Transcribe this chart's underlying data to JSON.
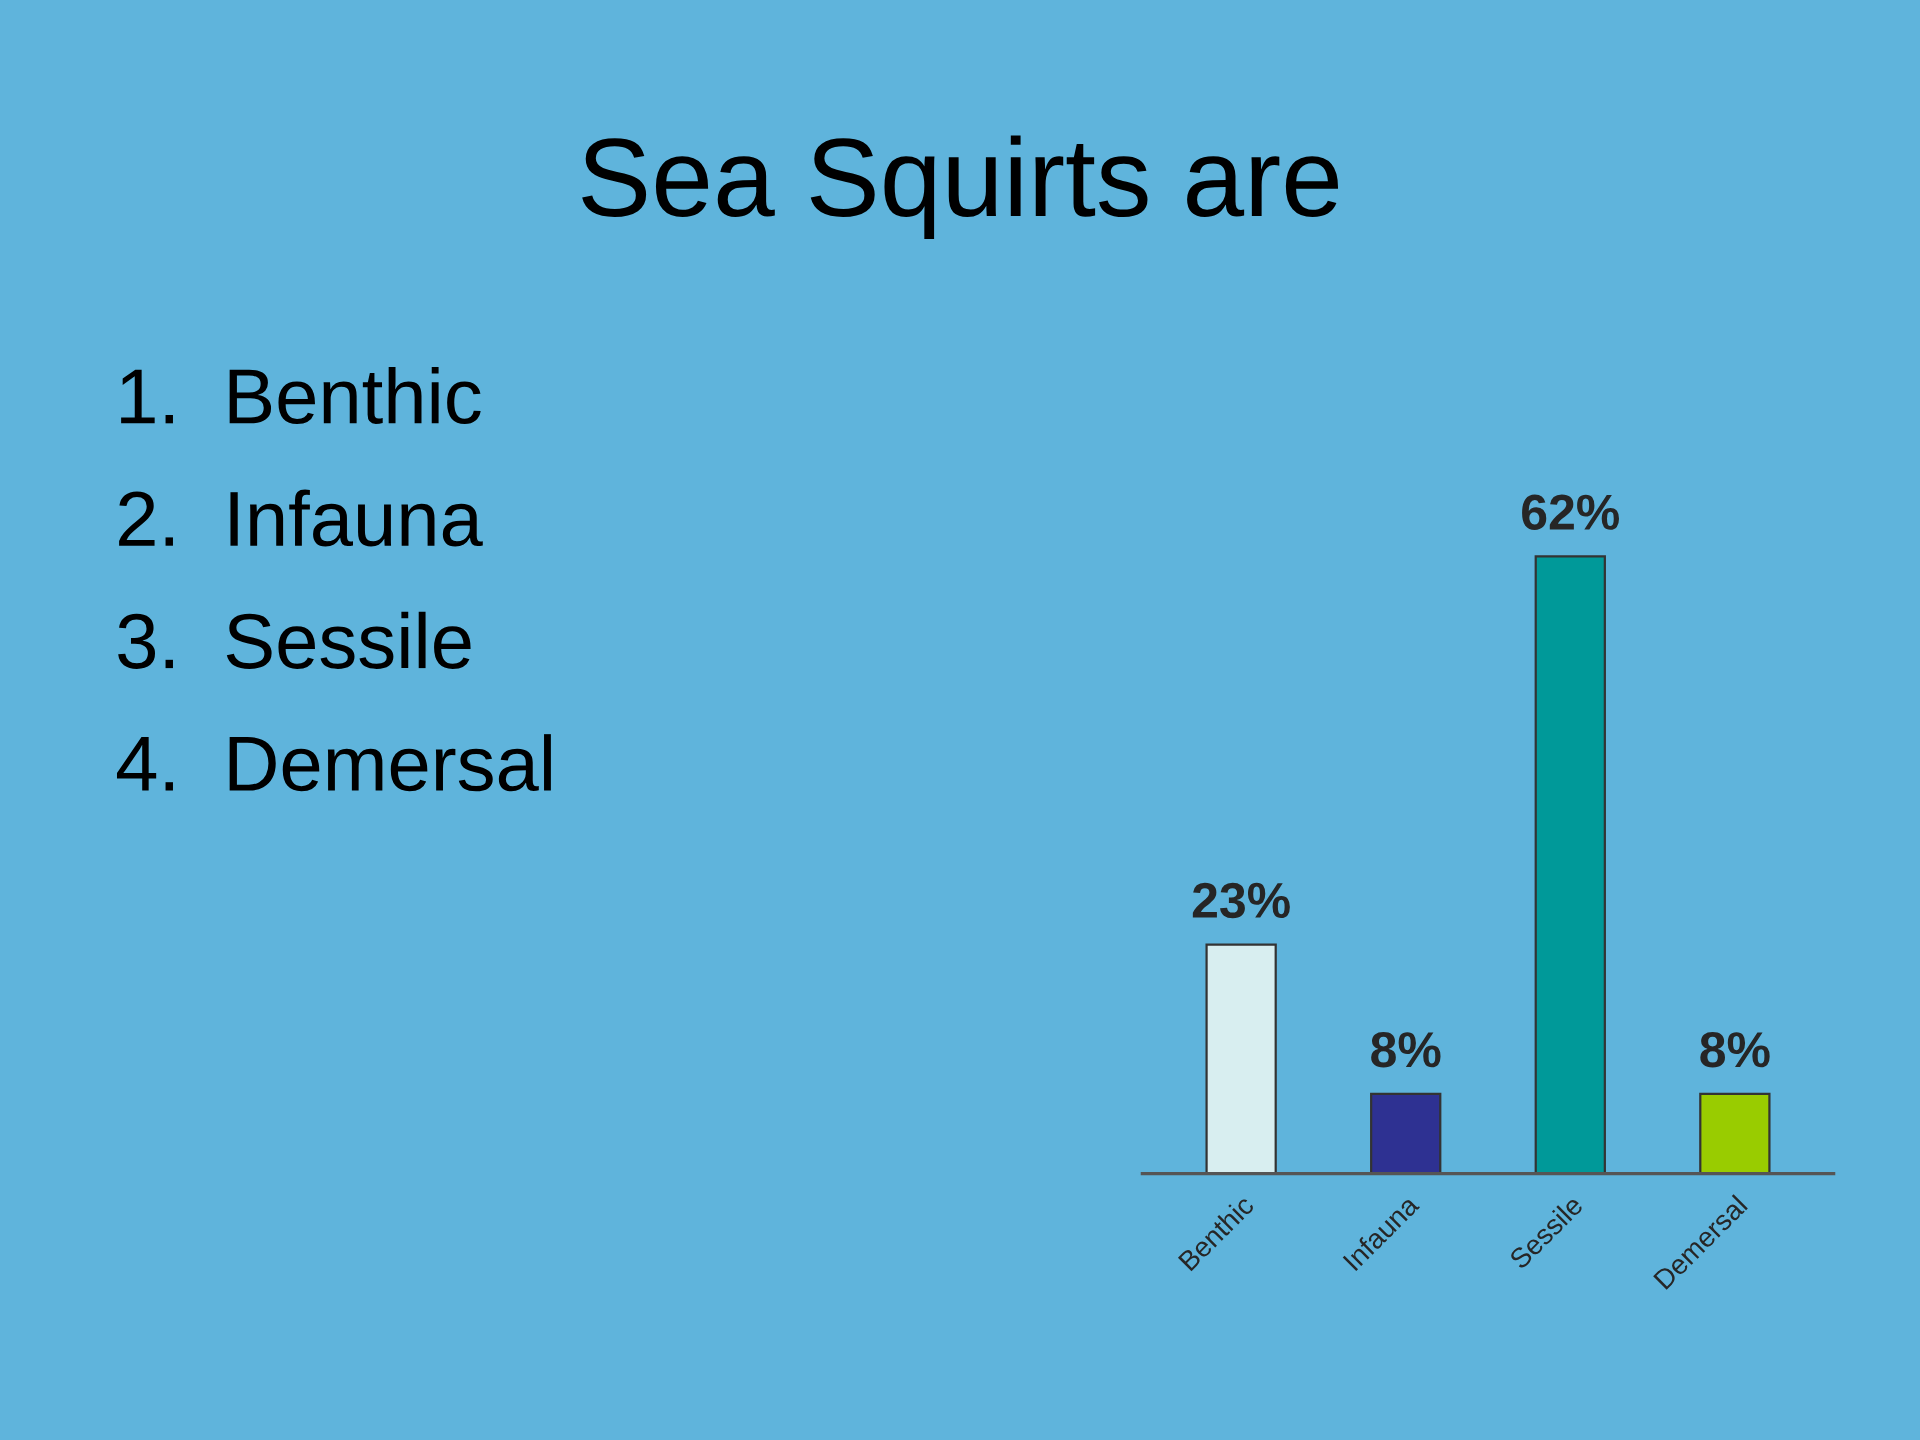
{
  "chart_data": {
    "type": "bar",
    "title": "Sea Squirts are",
    "categories": [
      "Benthic",
      "Infauna",
      "Sessile",
      "Demersal"
    ],
    "values": [
      23,
      8,
      62,
      8
    ],
    "colors": [
      "#d8eef0",
      "#2e3192",
      "#009999",
      "#99cc00"
    ],
    "value_labels": [
      "23%",
      "8%",
      "62%",
      "8%"
    ],
    "annotations": [
      "1.  Benthic",
      "2.  Infauna",
      "3.  Sessile",
      "4.  Demersal"
    ],
    "grid": false,
    "legend": false
  }
}
